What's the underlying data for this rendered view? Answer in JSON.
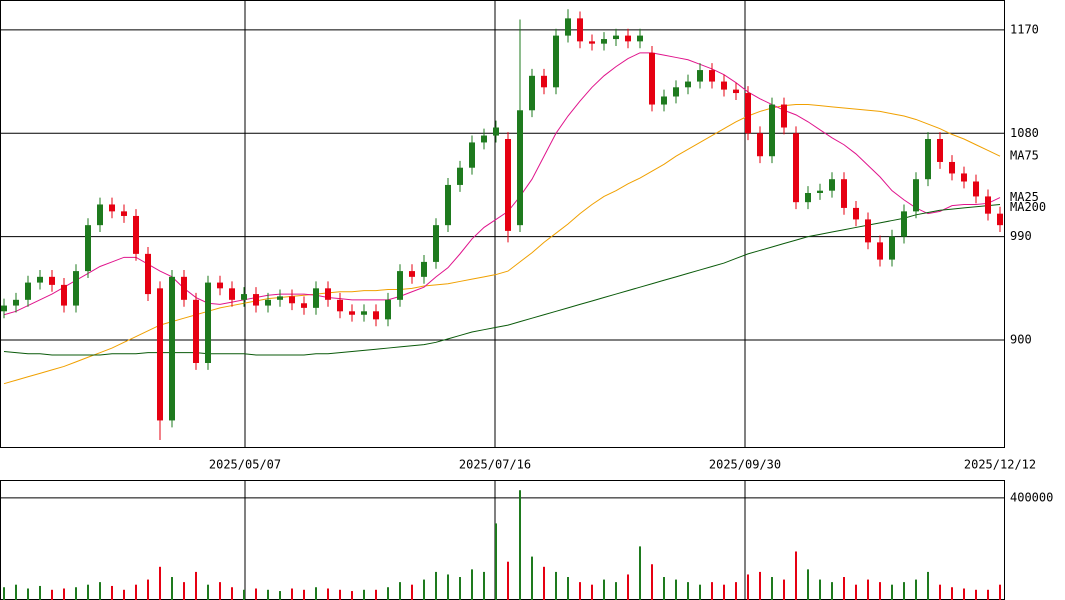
{
  "chart_data": [
    {
      "type": "candlestick",
      "x": [
        1,
        4,
        7,
        10,
        13,
        16,
        19,
        22,
        25,
        28,
        31,
        34,
        37,
        40,
        43,
        46,
        49,
        52,
        55,
        58,
        61,
        64,
        67,
        70,
        73,
        76,
        79,
        82,
        85,
        88,
        91,
        94,
        97,
        100,
        103,
        106,
        109,
        112,
        115,
        118,
        121,
        124,
        127,
        130,
        133,
        136,
        139,
        142,
        145,
        148,
        151,
        154,
        157,
        160,
        163,
        166,
        169,
        172,
        175,
        178,
        181,
        184,
        187,
        190,
        193,
        196,
        199,
        202,
        205,
        208,
        211,
        214,
        217,
        220,
        223,
        226,
        229,
        232,
        235,
        238,
        241,
        244,
        247,
        250
      ],
      "open": [
        925,
        930,
        935,
        950,
        955,
        948,
        930,
        960,
        1000,
        1018,
        1012,
        1008,
        975,
        945,
        830,
        955,
        935,
        880,
        950,
        945,
        935,
        940,
        930,
        935,
        938,
        932,
        928,
        945,
        935,
        925,
        922,
        925,
        918,
        935,
        960,
        955,
        968,
        1000,
        1035,
        1050,
        1072,
        1078,
        1075,
        1000,
        1100,
        1130,
        1120,
        1165,
        1180,
        1160,
        1158,
        1162,
        1165,
        1160,
        1150,
        1105,
        1112,
        1120,
        1125,
        1135,
        1125,
        1118,
        1115,
        1080,
        1060,
        1105,
        1080,
        1020,
        1028,
        1030,
        1040,
        1015,
        1005,
        985,
        970,
        990,
        1012,
        1040,
        1075,
        1055,
        1045,
        1038,
        1025,
        1010
      ],
      "high": [
        936,
        941,
        956,
        961,
        961,
        954,
        966,
        1006,
        1024,
        1024,
        1018,
        1014,
        981,
        951,
        961,
        961,
        941,
        956,
        956,
        951,
        946,
        946,
        941,
        944,
        944,
        938,
        951,
        951,
        941,
        931,
        931,
        931,
        941,
        966,
        966,
        974,
        1006,
        1041,
        1056,
        1078,
        1084,
        1091,
        1081,
        1179,
        1136,
        1136,
        1171,
        1188,
        1186,
        1166,
        1168,
        1171,
        1171,
        1171,
        1156,
        1118,
        1126,
        1131,
        1141,
        1141,
        1131,
        1124,
        1121,
        1086,
        1111,
        1111,
        1086,
        1034,
        1036,
        1046,
        1046,
        1021,
        1011,
        991,
        996,
        1018,
        1046,
        1081,
        1081,
        1061,
        1051,
        1044,
        1031,
        1016
      ],
      "low": [
        919,
        924,
        929,
        944,
        942,
        924,
        924,
        954,
        994,
        1006,
        1002,
        969,
        934,
        813,
        824,
        929,
        874,
        874,
        939,
        929,
        929,
        924,
        924,
        929,
        926,
        922,
        922,
        929,
        919,
        916,
        916,
        912,
        912,
        929,
        949,
        949,
        962,
        994,
        1029,
        1044,
        1066,
        1072,
        985,
        994,
        1094,
        1114,
        1114,
        1159,
        1154,
        1152,
        1152,
        1156,
        1154,
        1154,
        1099,
        1099,
        1106,
        1114,
        1119,
        1119,
        1112,
        1109,
        1074,
        1054,
        1054,
        1079,
        1014,
        1014,
        1022,
        1024,
        1009,
        999,
        979,
        964,
        964,
        984,
        1006,
        1034,
        1049,
        1039,
        1032,
        1019,
        1004,
        994
      ],
      "close": [
        930,
        935,
        950,
        955,
        948,
        930,
        960,
        1000,
        1018,
        1012,
        1008,
        975,
        940,
        830,
        955,
        935,
        880,
        950,
        945,
        935,
        940,
        930,
        935,
        938,
        932,
        928,
        945,
        935,
        925,
        922,
        925,
        918,
        935,
        960,
        955,
        968,
        1000,
        1035,
        1050,
        1072,
        1078,
        1085,
        995,
        1100,
        1130,
        1120,
        1165,
        1180,
        1160,
        1158,
        1162,
        1165,
        1160,
        1165,
        1105,
        1112,
        1120,
        1125,
        1135,
        1125,
        1118,
        1115,
        1080,
        1060,
        1105,
        1085,
        1020,
        1028,
        1030,
        1040,
        1015,
        1005,
        985,
        970,
        990,
        1012,
        1040,
        1075,
        1055,
        1045,
        1038,
        1025,
        1010,
        1000
      ],
      "up_color": "#1e7a1e",
      "down_color": "#e60012",
      "series": [
        {
          "name": "MA75",
          "color": "#f0a000",
          "values": [
            862,
            865,
            868,
            871,
            874,
            877,
            881,
            885,
            889,
            893,
            898,
            903,
            908,
            913,
            916,
            919,
            922,
            925,
            928,
            930,
            932,
            934,
            936,
            937,
            938,
            939,
            940,
            941,
            942,
            942,
            943,
            943,
            944,
            944,
            945,
            947,
            948,
            949,
            951,
            953,
            955,
            957,
            960,
            968,
            976,
            985,
            993,
            1001,
            1010,
            1018,
            1025,
            1030,
            1036,
            1041,
            1047,
            1053,
            1060,
            1066,
            1072,
            1078,
            1084,
            1090,
            1095,
            1099,
            1102,
            1104,
            1105,
            1105,
            1104,
            1103,
            1102,
            1101,
            1100,
            1099,
            1097,
            1095,
            1092,
            1088,
            1084,
            1079,
            1075,
            1070,
            1065,
            1060
          ]
        },
        {
          "name": "MA25",
          "color": "#e0148c",
          "values": [
            922,
            925,
            930,
            935,
            940,
            946,
            952,
            958,
            964,
            968,
            972,
            972,
            966,
            960,
            955,
            945,
            937,
            932,
            931,
            933,
            935,
            937,
            939,
            940,
            940,
            940,
            939,
            937,
            936,
            935,
            935,
            935,
            935,
            938,
            942,
            946,
            955,
            963,
            975,
            988,
            998,
            1005,
            1012,
            1025,
            1040,
            1060,
            1080,
            1095,
            1108,
            1120,
            1130,
            1138,
            1145,
            1150,
            1150,
            1148,
            1146,
            1144,
            1140,
            1136,
            1131,
            1124,
            1116,
            1110,
            1105,
            1100,
            1096,
            1090,
            1083,
            1076,
            1070,
            1062,
            1052,
            1042,
            1030,
            1022,
            1015,
            1010,
            1012,
            1017,
            1018,
            1018,
            1019,
            1024
          ]
        },
        {
          "name": "MA200",
          "color": "#0a5a0a",
          "values": [
            890,
            889,
            888,
            888,
            887,
            887,
            887,
            887,
            887,
            888,
            888,
            888,
            889,
            889,
            889,
            889,
            889,
            888,
            888,
            888,
            888,
            887,
            887,
            887,
            887,
            887,
            888,
            888,
            889,
            890,
            891,
            892,
            893,
            894,
            895,
            896,
            898,
            901,
            904,
            907,
            909,
            911,
            913,
            916,
            919,
            922,
            925,
            928,
            931,
            934,
            937,
            940,
            943,
            946,
            949,
            952,
            955,
            958,
            961,
            964,
            967,
            971,
            975,
            978,
            981,
            984,
            987,
            990,
            992,
            994,
            996,
            998,
            1000,
            1002,
            1004,
            1006,
            1009,
            1011,
            1013,
            1014,
            1015,
            1016,
            1017,
            1018
          ]
        }
      ],
      "xlim": [
        0,
        251.25
      ],
      "xticks": [
        {
          "value": 61.25,
          "label": "2025/05/07"
        },
        {
          "value": 123.75,
          "label": "2025/07/16"
        },
        {
          "value": 186.25,
          "label": "2025/09/30"
        },
        {
          "value": 251.25,
          "label": "2025/12/12"
        }
      ],
      "ylim": [
        806,
        1196
      ],
      "yticks": [
        900,
        990,
        1080,
        1170
      ],
      "grid": true
    },
    {
      "type": "bar",
      "values": [
        50000,
        60000,
        45000,
        55000,
        40000,
        45000,
        50000,
        60000,
        70000,
        55000,
        40000,
        60000,
        80000,
        130000,
        90000,
        70000,
        110000,
        60000,
        70000,
        50000,
        40000,
        45000,
        40000,
        35000,
        45000,
        40000,
        50000,
        45000,
        40000,
        35000,
        40000,
        40000,
        50000,
        70000,
        60000,
        80000,
        110000,
        100000,
        90000,
        120000,
        110000,
        300000,
        150000,
        430000,
        170000,
        130000,
        110000,
        90000,
        70000,
        60000,
        80000,
        70000,
        100000,
        210000,
        140000,
        90000,
        80000,
        70000,
        60000,
        70000,
        60000,
        70000,
        100000,
        110000,
        90000,
        80000,
        190000,
        120000,
        80000,
        70000,
        90000,
        60000,
        80000,
        70000,
        60000,
        70000,
        80000,
        110000,
        60000,
        50000,
        45000,
        40000,
        40000,
        60000
      ],
      "ylim": [
        0,
        470000
      ],
      "yticks": [
        400000
      ],
      "grid": true
    }
  ]
}
